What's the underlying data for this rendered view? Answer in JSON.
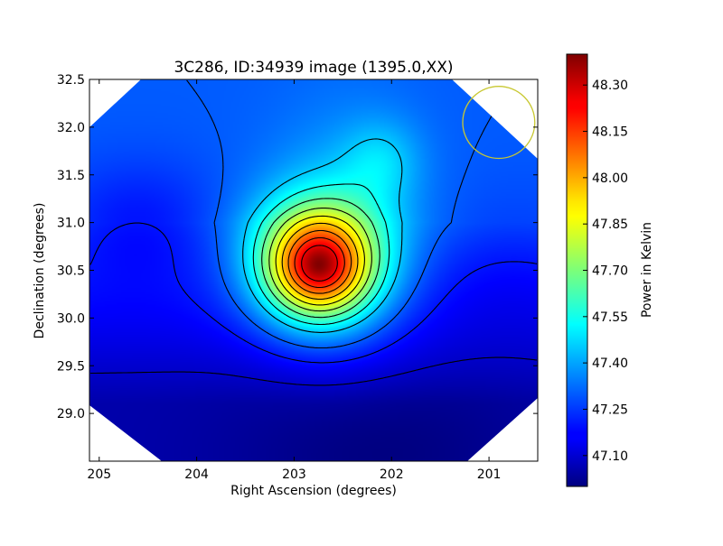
{
  "chart_data": {
    "type": "heatmap",
    "title": "3C286, ID:34939 image (1395.0,XX)",
    "xlabel": "Right Ascension (degrees)",
    "ylabel": "Declination (degrees)",
    "colorbar_label": "Power in Kelvin",
    "colormap": "jet",
    "x_reversed": true,
    "xlim": [
      205.1,
      200.5
    ],
    "ylim": [
      28.5,
      32.5
    ],
    "x_ticks": [
      "205",
      "204",
      "203",
      "202",
      "201"
    ],
    "x_tick_values": [
      205,
      204,
      203,
      202,
      201
    ],
    "y_ticks": [
      "29.0",
      "29.5",
      "30.0",
      "30.5",
      "31.0",
      "31.5",
      "32.0",
      "32.5"
    ],
    "y_tick_values": [
      29.0,
      29.5,
      30.0,
      30.5,
      31.0,
      31.5,
      32.0,
      32.5
    ],
    "colorbar_range": [
      47.0,
      48.4
    ],
    "colorbar_ticks": [
      "47.10",
      "47.25",
      "47.40",
      "47.55",
      "47.70",
      "47.85",
      "48.00",
      "48.15",
      "48.30"
    ],
    "colorbar_tick_values": [
      47.1,
      47.25,
      47.4,
      47.55,
      47.7,
      47.85,
      48.0,
      48.15,
      48.3
    ],
    "peak": {
      "ra": 202.75,
      "dec": 30.55,
      "value": 48.38
    },
    "secondary_lobe": {
      "ra": 202.1,
      "dec": 31.65,
      "value": 47.42
    },
    "minimum_region": {
      "ra": 202.1,
      "dec": 28.6,
      "value": 47.0
    },
    "contour_levels": [
      47.1,
      47.2,
      47.3,
      47.45,
      47.55,
      47.65,
      47.75,
      47.85,
      47.95,
      48.05,
      48.15,
      48.25
    ],
    "beam_circle": {
      "ra": 200.9,
      "dec": 32.05,
      "radius_deg": 0.37,
      "color": "#c8c832"
    },
    "contour_color": "#000000"
  }
}
